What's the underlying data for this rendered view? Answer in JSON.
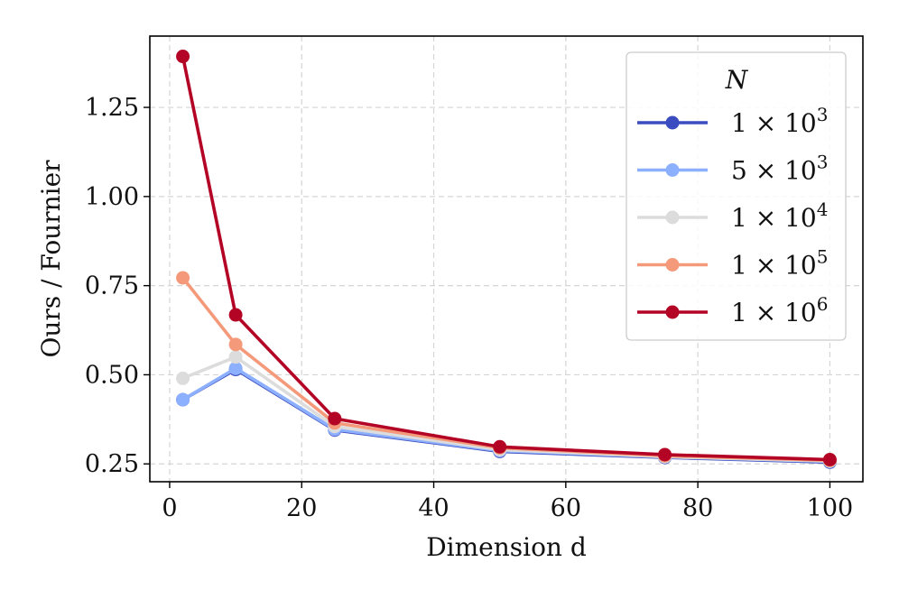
{
  "chart_data": {
    "type": "line",
    "x": [
      2,
      10,
      25,
      50,
      75,
      100
    ],
    "xlabel": "Dimension d",
    "ylabel": "Ours / Fournier",
    "xlim": [
      -3,
      105
    ],
    "ylim": [
      0.2,
      1.45
    ],
    "xticks": [
      0,
      20,
      40,
      60,
      80,
      100
    ],
    "xtick_labels": [
      "0",
      "20",
      "40",
      "60",
      "80",
      "100"
    ],
    "yticks": [
      0.25,
      0.5,
      0.75,
      1.0,
      1.25
    ],
    "ytick_labels": [
      "0.25",
      "0.50",
      "0.75",
      "1.00",
      "1.25"
    ],
    "grid": true,
    "legend_title": "N",
    "legend_position": "top-right",
    "series": [
      {
        "name": "1 × 10",
        "exponent": "3",
        "color": "#3b4cc0",
        "values": [
          0.43,
          0.515,
          0.345,
          0.285,
          0.268,
          0.255
        ]
      },
      {
        "name": "5 × 10",
        "exponent": "3",
        "color": "#8db0fe",
        "values": [
          0.43,
          0.518,
          0.347,
          0.287,
          0.27,
          0.257
        ]
      },
      {
        "name": "1 × 10",
        "exponent": "4",
        "color": "#dddcdc",
        "values": [
          0.49,
          0.55,
          0.355,
          0.29,
          0.27,
          0.258
        ]
      },
      {
        "name": "1 × 10",
        "exponent": "5",
        "color": "#f49a7b",
        "values": [
          0.772,
          0.585,
          0.365,
          0.295,
          0.273,
          0.26
        ]
      },
      {
        "name": "1 × 10",
        "exponent": "6",
        "color": "#b40426",
        "values": [
          1.393,
          0.668,
          0.377,
          0.298,
          0.276,
          0.262
        ]
      }
    ]
  }
}
